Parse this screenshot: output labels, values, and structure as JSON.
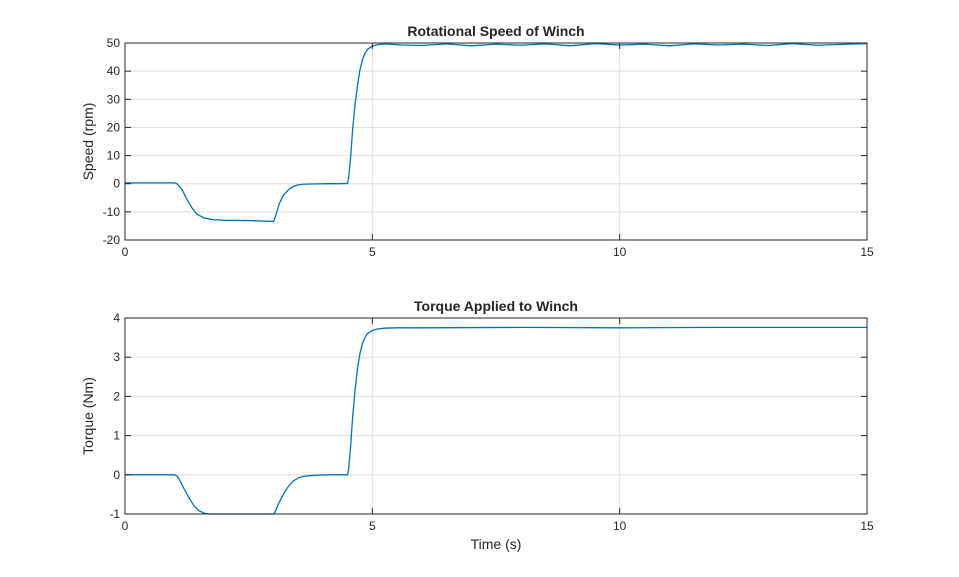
{
  "chart_data": [
    {
      "type": "line",
      "title": "Rotational Speed of Winch",
      "xlabel": "",
      "ylabel": "Speed (rpm)",
      "xlim": [
        0,
        15
      ],
      "ylim": [
        -20,
        50
      ],
      "xticks": [
        0,
        5,
        10,
        15
      ],
      "xtick_labels": [
        "0",
        "5",
        "10",
        "15"
      ],
      "yticks": [
        -20,
        -10,
        0,
        10,
        20,
        30,
        40,
        50
      ],
      "ytick_labels": [
        "-20",
        "-10",
        "0",
        "10",
        "20",
        "30",
        "40",
        "50"
      ],
      "grid": true,
      "color": "#0072bd",
      "series": [
        {
          "x": [
            0,
            1.0,
            1.05,
            1.15,
            1.25,
            1.35,
            1.45,
            1.6,
            1.8,
            2.0,
            2.5,
            3.0,
            3.02,
            3.06,
            3.12,
            3.2,
            3.3,
            3.4,
            3.5,
            3.6,
            3.75,
            3.9,
            4.1,
            4.3,
            4.5,
            4.52,
            4.56,
            4.6,
            4.65,
            4.7,
            4.75,
            4.8,
            4.85,
            4.9,
            5.0,
            5.1,
            5.25,
            5.4,
            5.6,
            6.0,
            6.5,
            7.0,
            7.5,
            8.0,
            8.5,
            9.0,
            9.5,
            10.0,
            10.5,
            11.0,
            11.5,
            12.0,
            12.5,
            13.0,
            13.5,
            14.0,
            14.5,
            15.0
          ],
          "y": [
            0.3,
            0.3,
            0.0,
            -2.0,
            -5.5,
            -8.5,
            -10.8,
            -12.2,
            -12.8,
            -13.0,
            -13.1,
            -13.4,
            -12.8,
            -10.5,
            -7.0,
            -4.2,
            -2.2,
            -1.0,
            -0.4,
            -0.2,
            -0.1,
            -0.05,
            0.0,
            0.0,
            0.1,
            2.0,
            9.0,
            19.0,
            28.0,
            35.0,
            40.5,
            44.0,
            46.3,
            47.7,
            48.9,
            49.4,
            49.7,
            49.5,
            49.3,
            49.1,
            49.7,
            49.0,
            49.6,
            49.2,
            49.7,
            49.0,
            49.8,
            49.3,
            49.6,
            49.0,
            49.7,
            49.3,
            49.6,
            49.1,
            49.8,
            49.2,
            49.5,
            49.8
          ]
        }
      ]
    },
    {
      "type": "line",
      "title": "Torque Applied to Winch",
      "xlabel": "Time (s)",
      "ylabel": "Torque (Nm)",
      "xlim": [
        0,
        15
      ],
      "ylim": [
        -1,
        4
      ],
      "xticks": [
        0,
        5,
        10,
        15
      ],
      "xtick_labels": [
        "0",
        "5",
        "10",
        "15"
      ],
      "yticks": [
        -1,
        0,
        1,
        2,
        3,
        4
      ],
      "ytick_labels": [
        "-1",
        "0",
        "1",
        "2",
        "3",
        "4"
      ],
      "grid": true,
      "color": "#0072bd",
      "series": [
        {
          "x": [
            0,
            1.0,
            1.05,
            1.1,
            1.2,
            1.3,
            1.4,
            1.5,
            1.6,
            1.7,
            1.8,
            2.5,
            3.0,
            3.02,
            3.05,
            3.1,
            3.2,
            3.3,
            3.4,
            3.5,
            3.6,
            3.75,
            3.9,
            4.1,
            4.3,
            4.5,
            4.52,
            4.56,
            4.6,
            4.65,
            4.7,
            4.75,
            4.8,
            4.85,
            4.9,
            5.0,
            5.1,
            5.25,
            5.5,
            6.0,
            8.0,
            10.0,
            12.0,
            15.0
          ],
          "y": [
            0.0,
            0.0,
            -0.03,
            -0.12,
            -0.37,
            -0.6,
            -0.8,
            -0.92,
            -0.98,
            -1.0,
            -1.0,
            -1.0,
            -1.0,
            -0.98,
            -0.9,
            -0.75,
            -0.5,
            -0.3,
            -0.16,
            -0.08,
            -0.04,
            -0.02,
            -0.01,
            0.0,
            0.0,
            0.0,
            0.15,
            0.7,
            1.45,
            2.15,
            2.7,
            3.1,
            3.35,
            3.5,
            3.6,
            3.68,
            3.72,
            3.74,
            3.75,
            3.75,
            3.76,
            3.75,
            3.76,
            3.76
          ]
        }
      ]
    }
  ]
}
